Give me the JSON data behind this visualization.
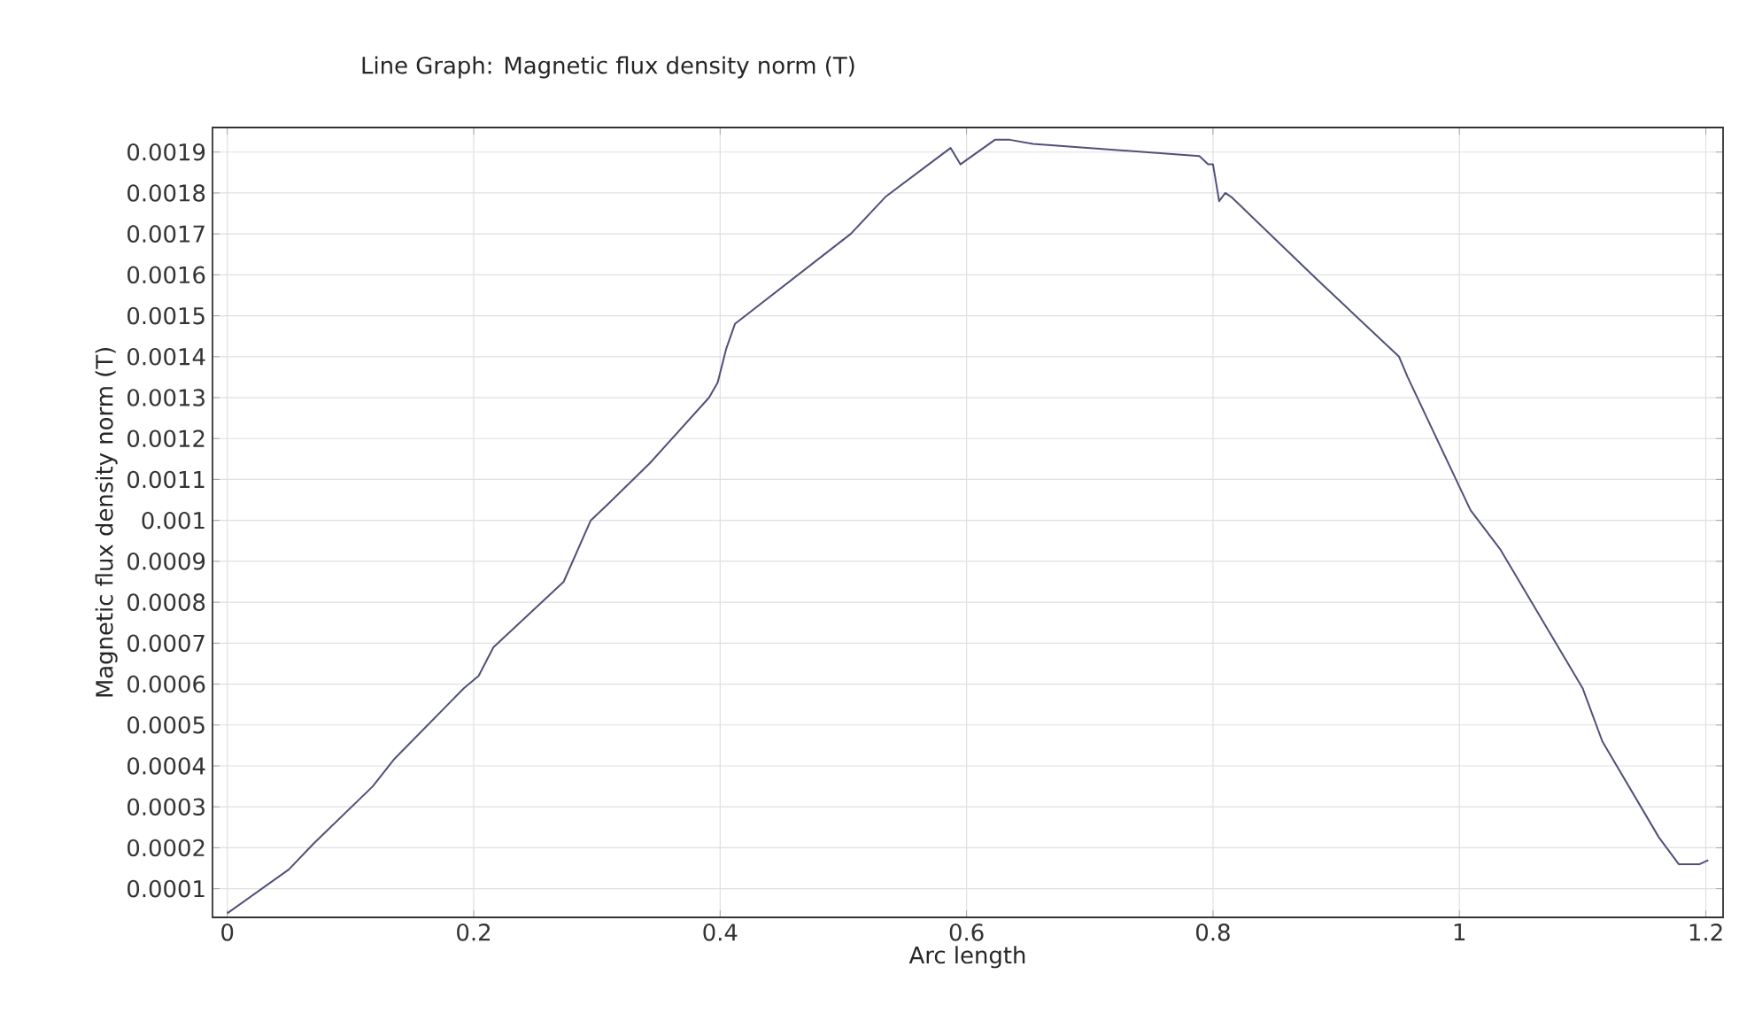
{
  "chart_data": {
    "type": "line",
    "title": "Line Graph: Magnetic flux density norm (T)",
    "xlabel": "Arc length",
    "ylabel": "Magnetic flux density norm (T)",
    "xlim": [
      -0.012,
      1.214
    ],
    "ylim": [
      3e-05,
      0.00196
    ],
    "xticks": [
      0,
      0.2,
      0.4,
      0.6,
      0.8,
      1,
      1.2
    ],
    "yticks": [
      0.0001,
      0.0002,
      0.0003,
      0.0004,
      0.0005,
      0.0006,
      0.0007,
      0.0008,
      0.0009,
      0.001,
      0.0011,
      0.0012,
      0.0013,
      0.0014,
      0.0015,
      0.0016,
      0.0017,
      0.0018,
      0.0019
    ],
    "grid": true,
    "x": [
      0,
      0.05,
      0.07,
      0.118,
      0.135,
      0.192,
      0.204,
      0.216,
      0.273,
      0.295,
      0.309,
      0.343,
      0.391,
      0.398,
      0.405,
      0.412,
      0.506,
      0.534,
      0.587,
      0.595,
      0.623,
      0.635,
      0.654,
      0.745,
      0.789,
      0.796,
      0.8,
      0.805,
      0.81,
      0.815,
      0.884,
      0.951,
      0.958,
      1.009,
      1.033,
      1.1,
      1.116,
      1.162,
      1.178,
      1.195,
      1.202
    ],
    "series": [
      {
        "color": "#50507a",
        "values": [
          4e-05,
          0.000147,
          0.00021,
          0.00035,
          0.000415,
          0.00059,
          0.00062,
          0.00069,
          0.00085,
          0.001,
          0.00104,
          0.00114,
          0.0013,
          0.001337,
          0.00142,
          0.00148,
          0.0017,
          0.00179,
          0.00191,
          0.00187,
          0.00193,
          0.00193,
          0.00192,
          0.0019,
          0.00189,
          0.00187,
          0.00187,
          0.00178,
          0.0018,
          0.00179,
          0.00159,
          0.0014,
          0.00135,
          0.001025,
          0.00093,
          0.00059,
          0.00046,
          0.000225,
          0.00016,
          0.00016,
          0.00017
        ]
      }
    ]
  }
}
